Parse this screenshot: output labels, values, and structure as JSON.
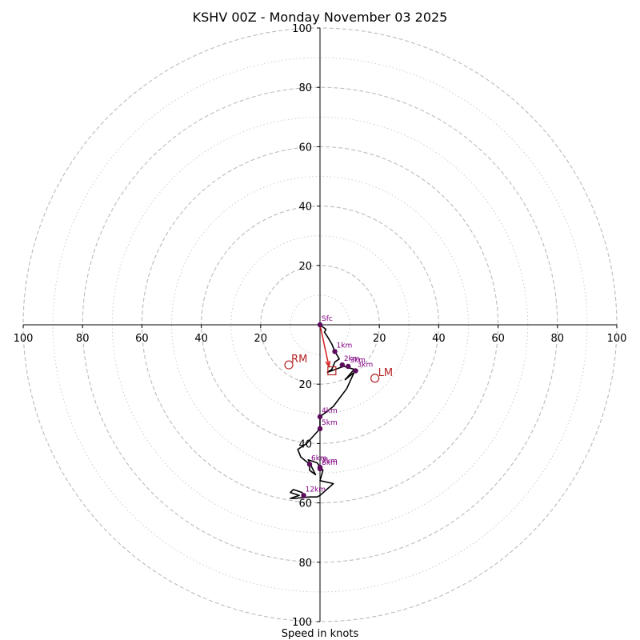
{
  "chart_data": {
    "type": "hodograph",
    "title": "KSHV 00Z - Monday November 03 2025",
    "xlabel": "Speed in knots",
    "max_speed": 100,
    "major_rings": [
      20,
      40,
      60,
      80,
      100
    ],
    "minor_rings": [
      10,
      30,
      50,
      70,
      90
    ],
    "axis_ticks": [
      {
        "pos": -100,
        "label": "100"
      },
      {
        "pos": -80,
        "label": "80"
      },
      {
        "pos": -60,
        "label": "60"
      },
      {
        "pos": -40,
        "label": "40"
      },
      {
        "pos": -20,
        "label": "20"
      },
      {
        "pos": 20,
        "label": "20"
      },
      {
        "pos": 40,
        "label": "40"
      },
      {
        "pos": 60,
        "label": "60"
      },
      {
        "pos": 80,
        "label": "80"
      },
      {
        "pos": 100,
        "label": "100"
      }
    ],
    "wind_trace": [
      [
        0,
        0
      ],
      [
        2,
        -1.5
      ],
      [
        1.5,
        -2.5
      ],
      [
        2.5,
        -4
      ],
      [
        4,
        -6.5
      ],
      [
        5,
        -9
      ],
      [
        6.5,
        -11.5
      ],
      [
        5,
        -12.5
      ],
      [
        4,
        -15
      ],
      [
        2.5,
        -16
      ],
      [
        8,
        -14
      ],
      [
        11.5,
        -15
      ],
      [
        8.5,
        -18.5
      ],
      [
        11.5,
        -16
      ],
      [
        9,
        -21.5
      ],
      [
        4.5,
        -27.5
      ],
      [
        0,
        -31
      ],
      [
        0,
        -35
      ],
      [
        -4.5,
        -40
      ],
      [
        -7.5,
        -42
      ],
      [
        -6.5,
        -44.5
      ],
      [
        -3.5,
        -47
      ],
      [
        -3.5,
        -49
      ],
      [
        -1.5,
        -50.5
      ],
      [
        -4,
        -45.5
      ],
      [
        -1,
        -46.5
      ],
      [
        1,
        -49
      ],
      [
        0,
        -52.5
      ],
      [
        4.5,
        -53.5
      ],
      [
        0,
        -57.5
      ],
      [
        -1,
        -58
      ],
      [
        -3.5,
        -58
      ],
      [
        -8.5,
        -58.5
      ],
      [
        -10,
        -58.5
      ],
      [
        -7,
        -57.5
      ],
      [
        -10,
        -56.5
      ],
      [
        -9,
        -55.5
      ],
      [
        -6,
        -56.5
      ],
      [
        -6,
        -57
      ]
    ],
    "height_markers": [
      {
        "label": "Sfc",
        "u": 0,
        "v": 0
      },
      {
        "label": "1km",
        "u": 5,
        "v": -9
      },
      {
        "label": "2km",
        "u": 7.5,
        "v": -13.5
      },
      {
        "label": "3km",
        "u": 9.5,
        "v": -14
      },
      {
        "label": "3km",
        "u": 12,
        "v": -15.5
      },
      {
        "label": "4km",
        "u": 0,
        "v": -31
      },
      {
        "label": "5km",
        "u": 0,
        "v": -35
      },
      {
        "label": "6km",
        "u": -3.5,
        "v": -47
      },
      {
        "label": "7km",
        "u": 0,
        "v": -48
      },
      {
        "label": "8km",
        "u": 0,
        "v": -48.5
      },
      {
        "label": "12km",
        "u": -5.5,
        "v": -57.5
      }
    ],
    "storm_motion": {
      "rm": {
        "label": "RM",
        "u": -10.5,
        "v": -13.5
      },
      "lm": {
        "label": "LM",
        "u": 18.5,
        "v": -18
      },
      "mean_wind": {
        "u": 4,
        "v": -15.5
      },
      "vector_end": {
        "u": 3,
        "v": -14
      }
    },
    "colors": {
      "trace": "#000000",
      "marker": "#5c0a5c",
      "marker_label": "#800080",
      "storm": "#b22222",
      "vector": "#d62728",
      "ring": "#bbbbbb"
    }
  }
}
